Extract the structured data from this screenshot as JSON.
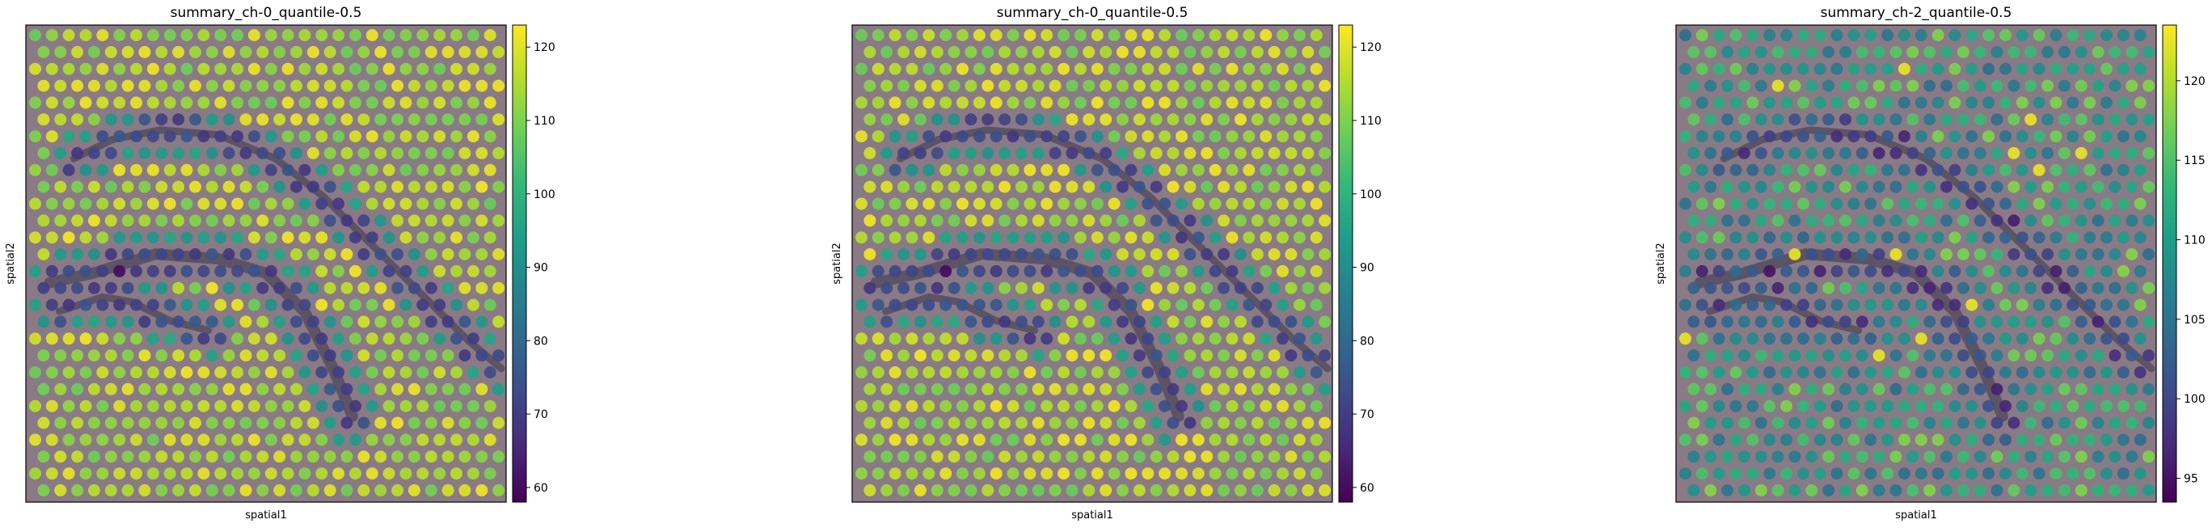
{
  "colormap": "viridis",
  "colors": {
    "viridis": [
      "#440154",
      "#482878",
      "#3e4989",
      "#31688e",
      "#26828e",
      "#1f9e89",
      "#35b779",
      "#6ece58",
      "#b5de2b",
      "#fde725"
    ],
    "tissue_base": "#8a7a86",
    "tissue_dark": "#3a3346",
    "frame": "#000000"
  },
  "chart_data": [
    {
      "type": "scatter",
      "title": "summary_ch-0_quantile-0.5",
      "xlabel": "spatial1",
      "ylabel": "spatial2",
      "colorbar": {
        "min": 58,
        "max": 123,
        "ticks": [
          "60",
          "70",
          "80",
          "90",
          "100",
          "110",
          "120"
        ],
        "tick_values": [
          60,
          70,
          80,
          90,
          100,
          110,
          120
        ]
      },
      "spots": {
        "rows": 28,
        "cols": 28,
        "background_value": 115,
        "vessel_value": 72,
        "core_value": 60
      }
    },
    {
      "type": "scatter",
      "title": "summary_ch-0_quantile-0.5",
      "xlabel": "spatial1",
      "ylabel": "spatial2",
      "colorbar": {
        "min": 58,
        "max": 123,
        "ticks": [
          "60",
          "70",
          "80",
          "90",
          "100",
          "110",
          "120"
        ],
        "tick_values": [
          60,
          70,
          80,
          90,
          100,
          110,
          120
        ]
      },
      "spots": {
        "rows": 28,
        "cols": 28,
        "background_value": 115,
        "vessel_value": 72,
        "core_value": 60
      }
    },
    {
      "type": "scatter",
      "title": "summary_ch-2_quantile-0.5",
      "xlabel": "spatial1",
      "ylabel": "spatial2",
      "colorbar": {
        "min": 93.5,
        "max": 123.5,
        "ticks": [
          "95",
          "100",
          "105",
          "110",
          "115",
          "120"
        ],
        "tick_values": [
          95,
          100,
          105,
          110,
          115,
          120
        ]
      },
      "spots": {
        "rows": 28,
        "cols": 28,
        "background_value": 111,
        "vessel_value": 100,
        "core_value": 95
      }
    }
  ]
}
